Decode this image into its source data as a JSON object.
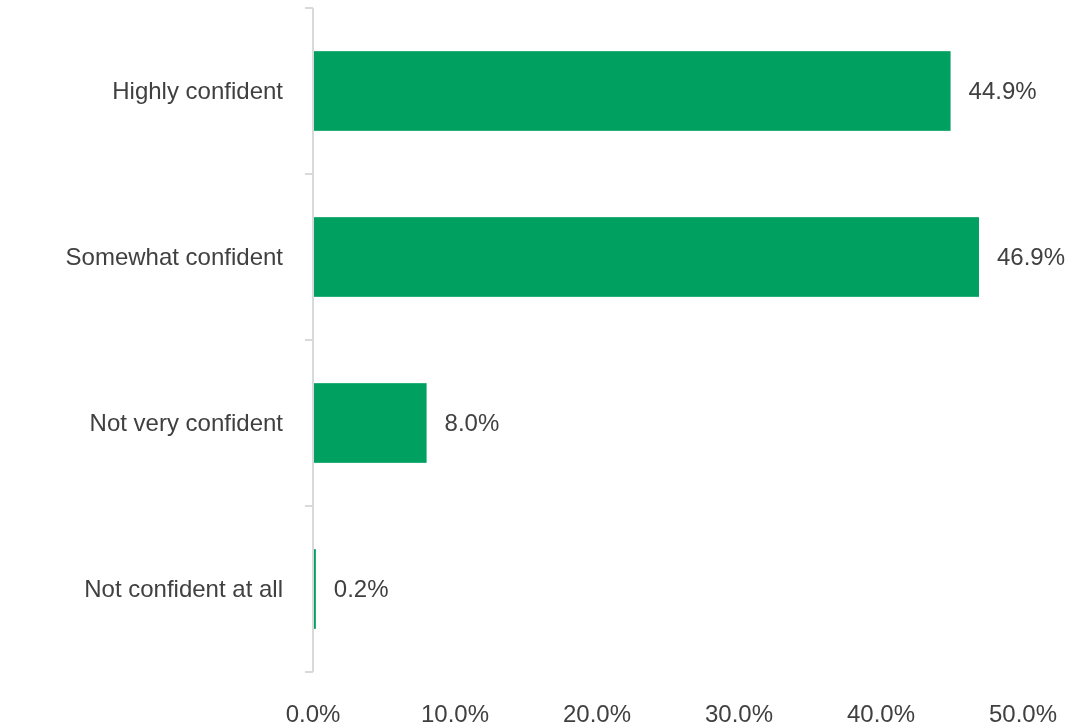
{
  "chart_data": {
    "type": "bar",
    "orientation": "horizontal",
    "categories": [
      "Highly confident",
      "Somewhat confident",
      "Not very confident",
      "Not confident at all"
    ],
    "values": [
      44.9,
      46.9,
      8.0,
      0.2
    ],
    "color": "#00a160",
    "value_labels": [
      "44.9%",
      "46.9%",
      "8.0%",
      "0.2%"
    ],
    "xlim": [
      0,
      50
    ],
    "xticks": [
      {
        "value": 0,
        "label": "0.0%"
      },
      {
        "value": 10,
        "label": "10.0%"
      },
      {
        "value": 20,
        "label": "20.0%"
      },
      {
        "value": 30,
        "label": "30.0%"
      },
      {
        "value": 40,
        "label": "40.0%"
      },
      {
        "value": 50,
        "label": "50.0%"
      }
    ],
    "grid": false
  }
}
